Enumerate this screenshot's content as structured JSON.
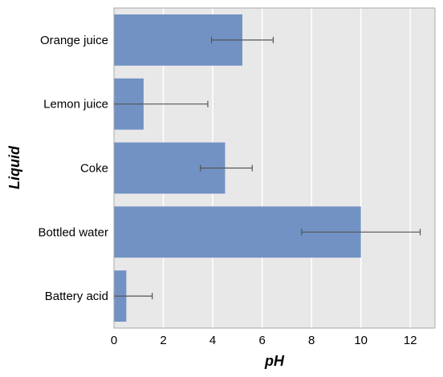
{
  "chart_data": {
    "type": "bar",
    "orientation": "horizontal",
    "title": "",
    "xlabel": "pH",
    "ylabel": "Liquid",
    "categories": [
      "Orange juice",
      "Lemon juice",
      "Coke",
      "Bottled water",
      "Battery acid"
    ],
    "values": [
      5.2,
      1.2,
      4.5,
      10.0,
      0.5
    ],
    "error_low": [
      3.95,
      0.0,
      3.5,
      7.6,
      0.0
    ],
    "error_high": [
      6.45,
      3.8,
      5.6,
      12.4,
      1.55
    ],
    "xlim": [
      0,
      13
    ],
    "xticks": [
      0,
      2,
      4,
      6,
      8,
      10,
      12
    ],
    "grid": "vertical",
    "colors": {
      "bar": "#7292c4",
      "background": "#e8e8e8",
      "grid": "#ffffff",
      "error": "#555555",
      "frame": "#aaaaaa"
    }
  }
}
